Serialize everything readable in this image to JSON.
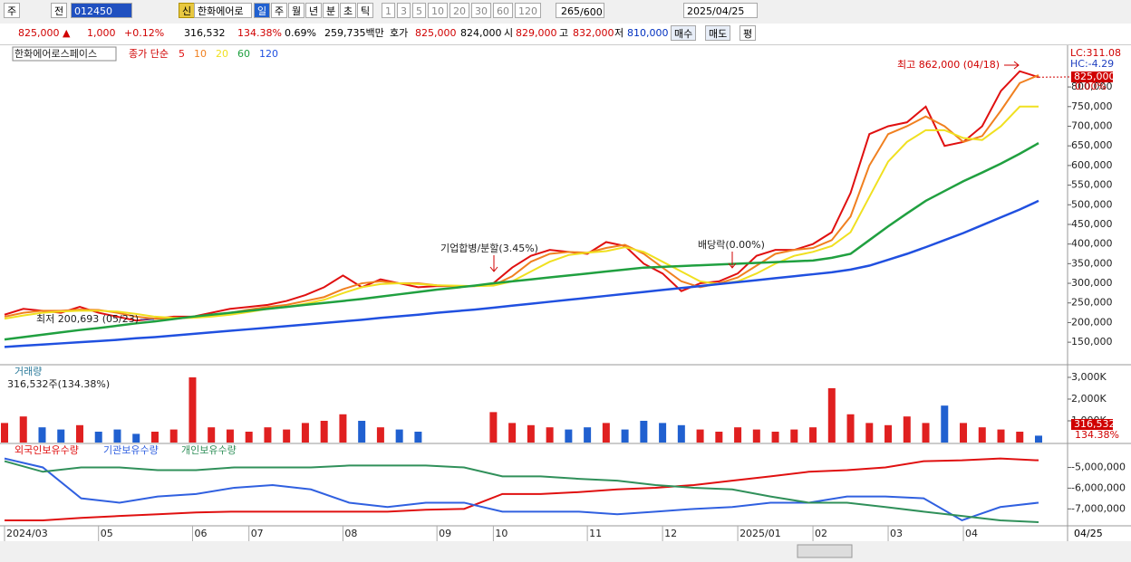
{
  "toolbar": {
    "view": "주",
    "prev": "전",
    "code": "012450",
    "name": "한화에어로",
    "credit": "신",
    "periods": [
      "일",
      "주",
      "월",
      "년",
      "분",
      "초",
      "틱"
    ],
    "intervals": [
      "1",
      "3",
      "5",
      "10",
      "20",
      "30",
      "60",
      "120"
    ],
    "count": "265",
    "count_max": "/600",
    "date": "2025/04/25"
  },
  "quote": {
    "price": "825,000 ▲",
    "change": "1,000",
    "change_pct": "+0.12%",
    "volume": "316,532",
    "volume_ratio": "134.38%",
    "turnover": "0.69%",
    "amount": "259,735백만",
    "bid_label": "호가",
    "ask": "825,000",
    "bid": "824,000",
    "open_label": "시",
    "open": "829,000",
    "high_label": "고",
    "high": "832,000",
    "low_label": "저",
    "low": "810,000",
    "buy": "매수",
    "sell": "매도",
    "avg": "평"
  },
  "axis_end_label": "04/25",
  "chart_data": [
    {
      "type": "line",
      "title": "한화에어로스페이스",
      "legend_title": "종가 단순",
      "categories": [
        "2024/03",
        null,
        null,
        null,
        null,
        "05",
        null,
        null,
        null,
        null,
        "06",
        null,
        null,
        "07",
        null,
        null,
        null,
        null,
        "08",
        null,
        null,
        null,
        null,
        "09",
        null,
        null,
        "10",
        null,
        null,
        null,
        null,
        "11",
        null,
        null,
        null,
        "12",
        null,
        null,
        null,
        "2025/01",
        null,
        null,
        null,
        "02",
        null,
        null,
        null,
        "03",
        null,
        null,
        null,
        "04",
        null,
        null,
        null,
        null
      ],
      "series": [
        {
          "name": "5",
          "color": "#e01010",
          "values": [
            220000,
            235000,
            230000,
            225000,
            240000,
            225000,
            215000,
            205000,
            210000,
            215000,
            215000,
            225000,
            235000,
            240000,
            245000,
            255000,
            270000,
            290000,
            320000,
            290000,
            310000,
            300000,
            290000,
            293000,
            293000,
            293000,
            300000,
            340000,
            370000,
            385000,
            380000,
            375000,
            405000,
            395000,
            350000,
            325000,
            280000,
            300000,
            305000,
            325000,
            370000,
            385000,
            385000,
            400000,
            430000,
            530000,
            680000,
            700000,
            710000,
            750000,
            650000,
            660000,
            700000,
            790000,
            840000,
            825000
          ]
        },
        {
          "name": "10",
          "color": "#f08020",
          "values": [
            215000,
            225000,
            230000,
            230000,
            233000,
            232000,
            225000,
            215000,
            210000,
            210000,
            213000,
            218000,
            225000,
            233000,
            240000,
            245000,
            255000,
            265000,
            285000,
            300000,
            305000,
            300000,
            300000,
            295000,
            293000,
            293000,
            295000,
            318000,
            355000,
            375000,
            380000,
            378000,
            390000,
            398000,
            375000,
            340000,
            305000,
            290000,
            300000,
            315000,
            345000,
            375000,
            385000,
            390000,
            410000,
            470000,
            600000,
            680000,
            700000,
            725000,
            700000,
            660000,
            675000,
            740000,
            810000,
            830000
          ]
        },
        {
          "name": "20",
          "color": "#f0e020",
          "values": [
            210000,
            218000,
            225000,
            228000,
            230000,
            230000,
            228000,
            222000,
            215000,
            212000,
            212000,
            215000,
            220000,
            227000,
            235000,
            240000,
            248000,
            258000,
            275000,
            290000,
            298000,
            300000,
            298000,
            295000,
            294000,
            293000,
            294000,
            305000,
            330000,
            355000,
            372000,
            378000,
            382000,
            392000,
            380000,
            355000,
            330000,
            305000,
            298000,
            305000,
            325000,
            350000,
            370000,
            380000,
            395000,
            430000,
            520000,
            610000,
            660000,
            690000,
            690000,
            670000,
            665000,
            700000,
            750000,
            750000
          ]
        },
        {
          "name": "60",
          "color": "#20a040",
          "values": [
            157000,
            163000,
            169000,
            175000,
            181000,
            186000,
            192000,
            198000,
            203000,
            209000,
            215000,
            220000,
            225000,
            230000,
            235000,
            240000,
            245000,
            250000,
            255000,
            260000,
            266000,
            272000,
            278000,
            284000,
            289000,
            294000,
            300000,
            305000,
            310000,
            315000,
            320000,
            325000,
            330000,
            335000,
            340000,
            342000,
            344000,
            346000,
            348000,
            350000,
            352000,
            354000,
            356000,
            358000,
            365000,
            375000,
            410000,
            445000,
            478000,
            510000,
            535000,
            560000,
            582000,
            605000,
            630000,
            657000
          ]
        },
        {
          "name": "120",
          "color": "#2050e0",
          "values": [
            138000,
            141000,
            144000,
            147000,
            150000,
            153000,
            156000,
            160000,
            163000,
            167000,
            171000,
            175000,
            179000,
            183000,
            187000,
            191000,
            195000,
            199000,
            203000,
            207000,
            212000,
            216000,
            220000,
            225000,
            229000,
            233000,
            238000,
            243000,
            248000,
            253000,
            258000,
            263000,
            268000,
            273000,
            278000,
            283000,
            288000,
            293000,
            298000,
            303000,
            308000,
            313000,
            318000,
            323000,
            328000,
            335000,
            345000,
            360000,
            375000,
            392000,
            410000,
            428000,
            448000,
            468000,
            488000,
            510000
          ]
        }
      ],
      "ylim": [
        95000,
        897000
      ],
      "yticks": [
        {
          "value": 150000,
          "label": "150,000"
        },
        {
          "value": 200000,
          "label": "200,000"
        },
        {
          "value": 250000,
          "label": "250,000"
        },
        {
          "value": 300000,
          "label": "300,000"
        },
        {
          "value": 350000,
          "label": "350,000"
        },
        {
          "value": 400000,
          "label": "400,000"
        },
        {
          "value": 450000,
          "label": "450,000"
        },
        {
          "value": 500000,
          "label": "500,000"
        },
        {
          "value": 550000,
          "label": "550,000"
        },
        {
          "value": 600000,
          "label": "600,000"
        },
        {
          "value": 650000,
          "label": "650,000"
        },
        {
          "value": 700000,
          "label": "700,000"
        },
        {
          "value": 750000,
          "label": "750,000"
        },
        {
          "value": 800000,
          "label": "800,000"
        }
      ],
      "annotations": [
        "최고 862,000 (04/18)",
        "최저 200,693 (05/23)",
        "기업합병/분할(3.45%)",
        "배당락(0.00%)"
      ],
      "indicators": [
        "LC:311.08",
        "HC:-4.29"
      ],
      "last_label": "825,000",
      "last_change": "0.00%"
    },
    {
      "type": "bar",
      "title": "거래량",
      "subtitle": "316,532주(134.38%)",
      "up_color": "#e02020",
      "down_color": "#2060d0",
      "values": [
        900000,
        1200000,
        700000,
        600000,
        800000,
        500000,
        600000,
        400000,
        500000,
        600000,
        3000000,
        700000,
        600000,
        500000,
        700000,
        600000,
        900000,
        1000000,
        1300000,
        1000000,
        700000,
        600000,
        500000,
        null,
        null,
        null,
        1400000,
        900000,
        800000,
        700000,
        600000,
        700000,
        900000,
        600000,
        1000000,
        900000,
        800000,
        600000,
        500000,
        700000,
        600000,
        500000,
        600000,
        700000,
        2500000,
        1300000,
        900000,
        800000,
        1200000,
        900000,
        1700000,
        900000,
        700000,
        600000,
        500000,
        316532
      ],
      "ylim": [
        0,
        3415000
      ],
      "yticks": [
        {
          "value": 1000000,
          "label": "1,000K"
        },
        {
          "value": 2000000,
          "label": "2,000K"
        },
        {
          "value": 3000000,
          "label": "3,000K"
        }
      ],
      "last_label": "316,532",
      "last_ratio": "134.38%"
    },
    {
      "type": "line",
      "series": [
        {
          "name": "외국인보유수량",
          "color": "#e01010",
          "values": [
            -7550000,
            -7550000,
            -7430000,
            -7340000,
            -7260000,
            -7170000,
            -7130000,
            -7130000,
            -7130000,
            -7130000,
            -7130000,
            -7040000,
            -7000000,
            -6280000,
            -6280000,
            -6190000,
            -6060000,
            -5980000,
            -5850000,
            -5640000,
            -5430000,
            -5210000,
            -5130000,
            -5000000,
            -4700000,
            -4660000,
            -4570000,
            -4660000
          ]
        },
        {
          "name": "기관보유수량",
          "color": "#3060e0",
          "values": [
            -4570000,
            -5000000,
            -6490000,
            -6700000,
            -6400000,
            -6280000,
            -5980000,
            -5850000,
            -6060000,
            -6700000,
            -6910000,
            -6700000,
            -6700000,
            -7130000,
            -7130000,
            -7130000,
            -7260000,
            -7130000,
            -7000000,
            -6910000,
            -6700000,
            -6700000,
            -6400000,
            -6400000,
            -6490000,
            -7550000,
            -6910000,
            -6700000
          ]
        },
        {
          "name": "개인보유수량",
          "color": "#30905a",
          "values": [
            -4700000,
            -5210000,
            -5000000,
            -5000000,
            -5130000,
            -5130000,
            -5000000,
            -5000000,
            -5000000,
            -4910000,
            -4910000,
            -4910000,
            -5000000,
            -5430000,
            -5430000,
            -5550000,
            -5640000,
            -5850000,
            -5980000,
            -6060000,
            -6400000,
            -6700000,
            -6700000,
            -6910000,
            -7130000,
            -7340000,
            -7550000,
            -7640000
          ]
        }
      ],
      "ylim": [
        -7770000,
        -4020000
      ],
      "yticks": [
        {
          "value": -5000000,
          "label": "-5,000,000"
        },
        {
          "value": -6000000,
          "label": "-6,000,000"
        },
        {
          "value": -7000000,
          "label": "-7,000,000"
        }
      ]
    }
  ]
}
